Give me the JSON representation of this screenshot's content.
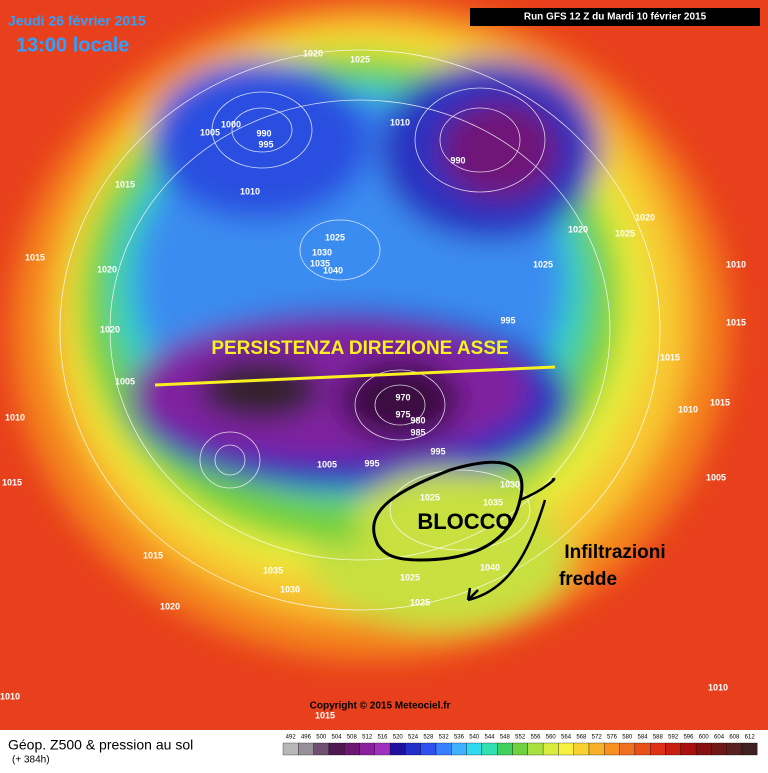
{
  "header": {
    "date": "Jeudi 26 février 2015",
    "time": "13:00 locale",
    "run": "Run GFS 12 Z du Mardi 10 février 2015"
  },
  "annotations": {
    "axis": "PERSISTENZA DIREZIONE ASSE",
    "block": "BLOCCO",
    "cold_line1": "Infiltrazioni",
    "cold_line2": "fredde"
  },
  "copyright": "Copyright © 2015 Meteociel.fr",
  "footer": {
    "title": "Géop. Z500 & pression au sol",
    "lead": "(+ 384h)"
  },
  "scale": [
    492,
    496,
    500,
    504,
    508,
    512,
    516,
    520,
    524,
    528,
    532,
    536,
    540,
    544,
    548,
    552,
    556,
    560,
    564,
    568,
    572,
    576,
    580,
    584,
    588,
    592,
    596,
    600,
    604,
    608,
    612
  ],
  "isobar_labels": [
    1020,
    1025,
    1000,
    990,
    1005,
    995,
    1010,
    990,
    1015,
    1010,
    1015,
    1020,
    1025,
    1030,
    1035,
    1040,
    1020,
    1025,
    1020,
    1025,
    1010,
    995,
    1015,
    1020,
    1005,
    1015,
    1010,
    1015,
    1005,
    970,
    975,
    980,
    985,
    995,
    1005,
    995,
    1010,
    1015,
    1015,
    1035,
    1030,
    1020,
    1025,
    1035,
    1030,
    1040,
    1025,
    1025,
    1010,
    1010,
    1015
  ]
}
